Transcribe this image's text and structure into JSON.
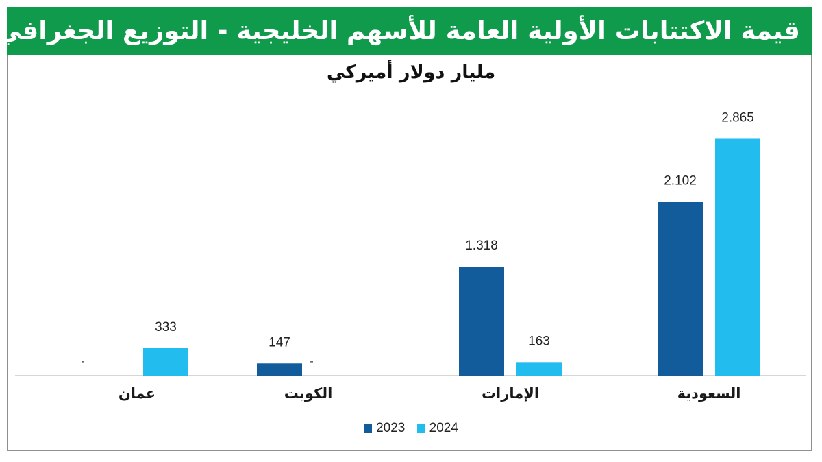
{
  "header": {
    "title": "قيمة الاكتتابات الأولية العامة للأسهم الخليجية - التوزيع الجغرافي"
  },
  "chart_data": {
    "type": "bar",
    "title": "قيمة الاكتتابات الأولية العامة للأسهم الخليجية - التوزيع الجغرافي",
    "subtitle": "مليار دولار أميركي",
    "categories": [
      "عمان",
      "الكويت",
      "الإمارات",
      "السعودية"
    ],
    "series": [
      {
        "name": "2023",
        "color": "#135c9b",
        "values": [
          null,
          147,
          1318,
          2102
        ],
        "labels": [
          "-",
          "147",
          "1.318",
          "2.102"
        ]
      },
      {
        "name": "2024",
        "color": "#22bcef",
        "values": [
          333,
          null,
          163,
          2865
        ],
        "labels": [
          "333",
          "-",
          "163",
          "2.865"
        ]
      }
    ],
    "ylim": [
      0,
      3300
    ],
    "grid": false,
    "legend_position": "bottom"
  }
}
